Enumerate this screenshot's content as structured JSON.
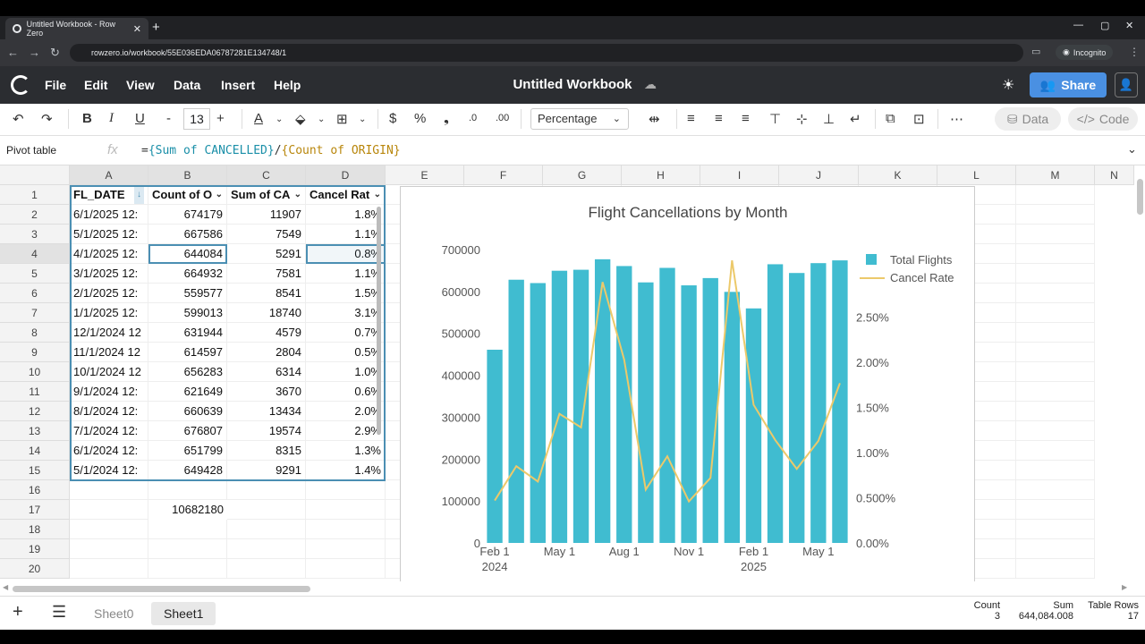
{
  "browser": {
    "tab_title": "Untitled Workbook - Row Zero",
    "url": "rowzero.io/workbook/55E036EDA06787281E134748/1",
    "incognito_label": "Incognito"
  },
  "app": {
    "menu": [
      "File",
      "Edit",
      "View",
      "Data",
      "Insert",
      "Help"
    ],
    "workbook_title": "Untitled Workbook",
    "share_label": "Share"
  },
  "toolbar": {
    "font_size": "13",
    "number_format": "Percentage",
    "data_label": "Data",
    "code_label": "Code"
  },
  "formula_bar": {
    "name_box": "Pivot table",
    "fx": "fx",
    "formula_eq": "=",
    "ref1": "{Sum of CANCELLED}",
    "op": "/",
    "ref2": "{Count of ORIGIN}"
  },
  "grid": {
    "columns": [
      "A",
      "B",
      "C",
      "D",
      "E",
      "F",
      "G",
      "H",
      "I",
      "J",
      "K",
      "L",
      "M",
      "N"
    ],
    "rows": [
      "1",
      "2",
      "3",
      "4",
      "5",
      "6",
      "7",
      "8",
      "9",
      "10",
      "11",
      "12",
      "13",
      "14",
      "15",
      "16",
      "17",
      "18",
      "19",
      "20"
    ],
    "headers": [
      "FL_DATE",
      "Count of O",
      "Sum of CA",
      "Cancel Rat"
    ],
    "data": [
      [
        "6/1/2025 12:",
        "674179",
        "11907",
        "1.8%"
      ],
      [
        "5/1/2025 12:",
        "667586",
        "7549",
        "1.1%"
      ],
      [
        "4/1/2025 12:",
        "644084",
        "5291",
        "0.8%"
      ],
      [
        "3/1/2025 12:",
        "664932",
        "7581",
        "1.1%"
      ],
      [
        "2/1/2025 12:",
        "559577",
        "8541",
        "1.5%"
      ],
      [
        "1/1/2025 12:",
        "599013",
        "18740",
        "3.1%"
      ],
      [
        "12/1/2024 12",
        "631944",
        "4579",
        "0.7%"
      ],
      [
        "11/1/2024 12",
        "614597",
        "2804",
        "0.5%"
      ],
      [
        "10/1/2024 12",
        "656283",
        "6314",
        "1.0%"
      ],
      [
        "9/1/2024 12:",
        "621649",
        "3670",
        "0.6%"
      ],
      [
        "8/1/2024 12:",
        "660639",
        "13434",
        "2.0%"
      ],
      [
        "7/1/2024 12:",
        "676807",
        "19574",
        "2.9%"
      ],
      [
        "6/1/2024 12:",
        "651799",
        "8315",
        "1.3%"
      ],
      [
        "5/1/2024 12:",
        "649428",
        "9291",
        "1.4%"
      ]
    ],
    "total_b17": "10682180"
  },
  "chart_data": {
    "type": "bar",
    "title": "Flight Cancellations by Month",
    "x": [
      "2024-02",
      "2024-03",
      "2024-04",
      "2024-05",
      "2024-06",
      "2024-07",
      "2024-08",
      "2024-09",
      "2024-10",
      "2024-11",
      "2024-12",
      "2025-01",
      "2025-02",
      "2025-03",
      "2025-04",
      "2025-05",
      "2025-06"
    ],
    "x_tick_labels": [
      [
        "Feb 1",
        "2024"
      ],
      [
        "May 1",
        ""
      ],
      [
        "Aug 1",
        ""
      ],
      [
        "Nov 1",
        ""
      ],
      [
        "Feb 1",
        "2025"
      ],
      [
        "May 1",
        ""
      ]
    ],
    "x_tick_index": [
      0,
      3,
      6,
      9,
      12,
      15
    ],
    "series": [
      {
        "name": "Total Flights",
        "type": "bar",
        "axis": "left",
        "color": "#40bcd0",
        "values": [
          461000,
          628000,
          620000,
          649428,
          651799,
          676807,
          660639,
          621649,
          656283,
          614597,
          631944,
          599013,
          559577,
          664932,
          644084,
          667586,
          674179
        ]
      },
      {
        "name": "Cancel Rate",
        "type": "line",
        "axis": "right",
        "color": "#ecc96a",
        "values": [
          0.0047,
          0.0085,
          0.0068,
          0.0143,
          0.0128,
          0.0289,
          0.0203,
          0.0059,
          0.0096,
          0.0046,
          0.0072,
          0.0313,
          0.0153,
          0.0114,
          0.0082,
          0.0113,
          0.0177
        ]
      }
    ],
    "left_ylim": [
      0,
      700000
    ],
    "left_ticks": [
      "0",
      "100000",
      "200000",
      "300000",
      "400000",
      "500000",
      "600000",
      "700000"
    ],
    "right_ylim": [
      0,
      0.0325
    ],
    "right_ticks": [
      "0.00%",
      "0.500%",
      "1.00%",
      "1.50%",
      "2.00%",
      "2.50%"
    ],
    "legend_position": "top-right"
  },
  "status_bar": {
    "sheets": [
      "Sheet0",
      "Sheet1"
    ],
    "count_label": "Count",
    "count_value": "3",
    "sum_label": "Sum",
    "sum_value": "644,084.008",
    "rows_label": "Table Rows",
    "rows_value": "17"
  }
}
